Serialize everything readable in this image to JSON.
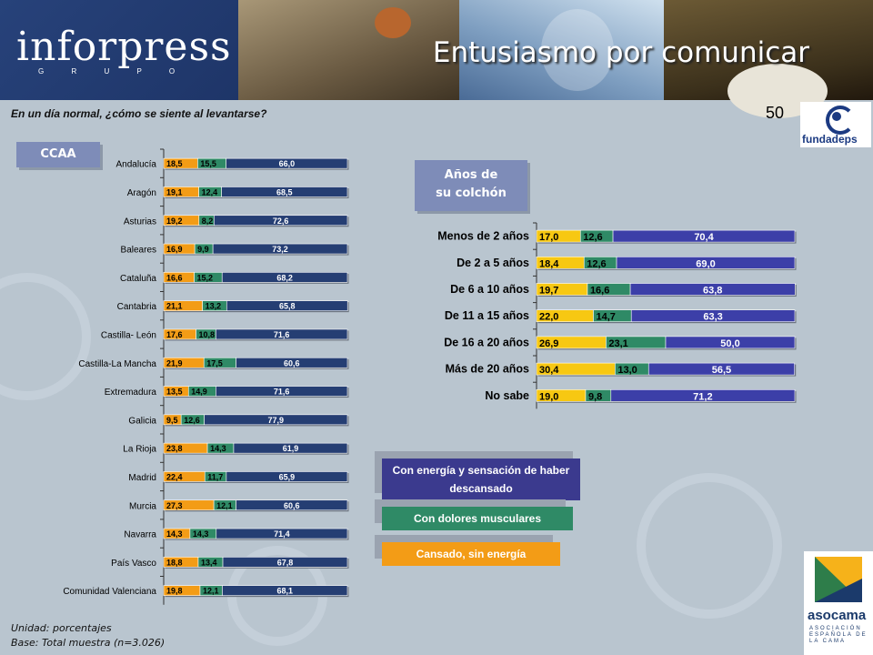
{
  "header": {
    "brand": "inforpress",
    "brand_sub": "G R U P O",
    "title": "Entusiasmo por comunicar"
  },
  "question": "En un día normal, ¿cómo se siente al levantarse?",
  "page_number": "50",
  "logos": {
    "fundadeps": "fundadeps",
    "asocama": "asocama",
    "asocama_sub": "ASOCIACIÓN ESPAÑOLA DE LA CAMA"
  },
  "badges": {
    "ccaa": "CCAA",
    "years_line1": "Años de",
    "years_line2": "su colchón"
  },
  "legend": {
    "blue": "Con energía y sensación de haber descansado",
    "green": "Con dolores musculares",
    "orange": "Cansado, sin energía"
  },
  "footnotes": {
    "unit": "Unidad: porcentajes",
    "base": "Base: Total muestra (n=3.026)"
  },
  "colors": {
    "blue": "#253e73",
    "green": "#2f8a66",
    "orange": "#f39c16",
    "yellow": "#f7c812",
    "blue2": "#3c3fa8"
  },
  "chart_data": [
    {
      "type": "bar",
      "stacked": true,
      "orientation": "horizontal",
      "categories": [
        "Andalucía",
        "Aragón",
        "Asturias",
        "Baleares",
        "Cataluña",
        "Cantabria",
        "Castilla- León",
        "Castilla-La Mancha",
        "Extremadura",
        "Galicia",
        "La Rioja",
        "Madrid",
        "Murcia",
        "Navarra",
        "País Vasco",
        "Comunidad Valenciana"
      ],
      "series": [
        {
          "name": "Cansado, sin energía",
          "values": [
            18.5,
            19.1,
            19.2,
            16.9,
            16.6,
            21.1,
            17.6,
            21.9,
            13.5,
            9.5,
            23.8,
            22.4,
            27.3,
            14.3,
            18.8,
            19.8
          ]
        },
        {
          "name": "Con dolores musculares",
          "values": [
            15.5,
            12.4,
            8.2,
            9.9,
            15.2,
            13.2,
            10.8,
            17.5,
            14.9,
            12.6,
            14.3,
            11.7,
            12.1,
            14.3,
            13.4,
            12.1
          ]
        },
        {
          "name": "Con energía y sensación de haber descansado",
          "values": [
            66.0,
            68.5,
            72.6,
            73.2,
            68.2,
            65.8,
            71.6,
            60.6,
            71.6,
            77.9,
            61.9,
            65.9,
            60.6,
            71.4,
            67.8,
            68.1
          ]
        }
      ],
      "labels": [
        [
          "18,5",
          "15,5",
          "66,0"
        ],
        [
          "19,1",
          "12,4",
          "68,5"
        ],
        [
          "19,2",
          "8,2",
          "72,6"
        ],
        [
          "16,9",
          "9,9",
          "73,2"
        ],
        [
          "16,6",
          "15,2",
          "68,2"
        ],
        [
          "21,1",
          "13,2",
          "65,8"
        ],
        [
          "17,6",
          "10,8",
          "71,6"
        ],
        [
          "21,9",
          "17,5",
          "60,6"
        ],
        [
          "13,5",
          "14,9",
          "71,6"
        ],
        [
          "9,5",
          "12,6",
          "77,9"
        ],
        [
          "23,8",
          "14,3",
          "61,9"
        ],
        [
          "22,4",
          "11,7",
          "65,9"
        ],
        [
          "27,3",
          "12,1",
          "60,6"
        ],
        [
          "14,3",
          "14,3",
          "71,4"
        ],
        [
          "18,8",
          "13,4",
          "67,8"
        ],
        [
          "19,8",
          "12,1",
          "68,1"
        ]
      ],
      "xlim": [
        0,
        100
      ]
    },
    {
      "type": "bar",
      "stacked": true,
      "orientation": "horizontal",
      "categories": [
        "Menos de 2 años",
        "De 2 a 5 años",
        "De 6 a 10 años",
        "De 11 a 15 años",
        "De 16 a 20 años",
        "Más de 20 años",
        "No sabe"
      ],
      "series": [
        {
          "name": "Cansado, sin energía",
          "values": [
            17.0,
            18.4,
            19.7,
            22.0,
            26.9,
            30.4,
            19.0
          ]
        },
        {
          "name": "Con dolores musculares",
          "values": [
            12.6,
            12.6,
            16.6,
            14.7,
            23.1,
            13.0,
            9.8
          ]
        },
        {
          "name": "Con energía y sensación de haber descansado",
          "values": [
            70.4,
            69.0,
            63.8,
            63.3,
            50.0,
            56.5,
            71.2
          ]
        }
      ],
      "labels": [
        [
          "17,0",
          "12,6",
          "70,4"
        ],
        [
          "18,4",
          "12,6",
          "69,0"
        ],
        [
          "19,7",
          "16,6",
          "63,8"
        ],
        [
          "22,0",
          "14,7",
          "63,3"
        ],
        [
          "26,9",
          "23,1",
          "50,0"
        ],
        [
          "30,4",
          "13,0",
          "56,5"
        ],
        [
          "19,0",
          "9,8",
          "71,2"
        ]
      ],
      "xlim": [
        0,
        100
      ]
    }
  ]
}
